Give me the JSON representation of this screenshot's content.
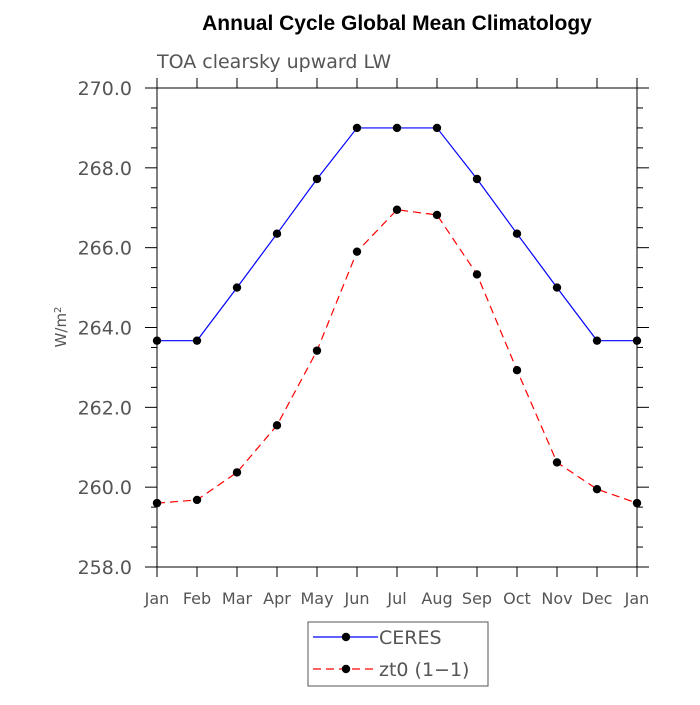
{
  "chart_data": {
    "type": "line",
    "title": "Annual Cycle Global Mean Climatology",
    "subtitle": "TOA clearsky upward LW",
    "xlabel": "",
    "ylabel": "W/m",
    "ylabel_superscript": "2",
    "categories": [
      "Jan",
      "Feb",
      "Mar",
      "Apr",
      "May",
      "Jun",
      "Jul",
      "Aug",
      "Sep",
      "Oct",
      "Nov",
      "Dec",
      "Jan"
    ],
    "ylim": [
      258.0,
      270.0
    ],
    "yticks": [
      "258.0",
      "260.0",
      "262.0",
      "264.0",
      "266.0",
      "268.0",
      "270.0"
    ],
    "legend_position": "bottom-center",
    "series": [
      {
        "name": "CERES",
        "color": "#0000ff",
        "dash": "solid",
        "marker": "filled-circle",
        "values": [
          263.67,
          263.67,
          265.0,
          266.35,
          267.72,
          269.0,
          269.0,
          269.0,
          267.72,
          266.35,
          265.0,
          263.67,
          263.67
        ]
      },
      {
        "name": "zt0 (1−1)",
        "color": "#ff0000",
        "dash": "dashed",
        "marker": "filled-circle",
        "values": [
          259.6,
          259.68,
          260.37,
          261.55,
          263.42,
          265.9,
          266.95,
          266.82,
          265.33,
          262.93,
          260.62,
          259.95,
          259.6
        ]
      }
    ]
  }
}
